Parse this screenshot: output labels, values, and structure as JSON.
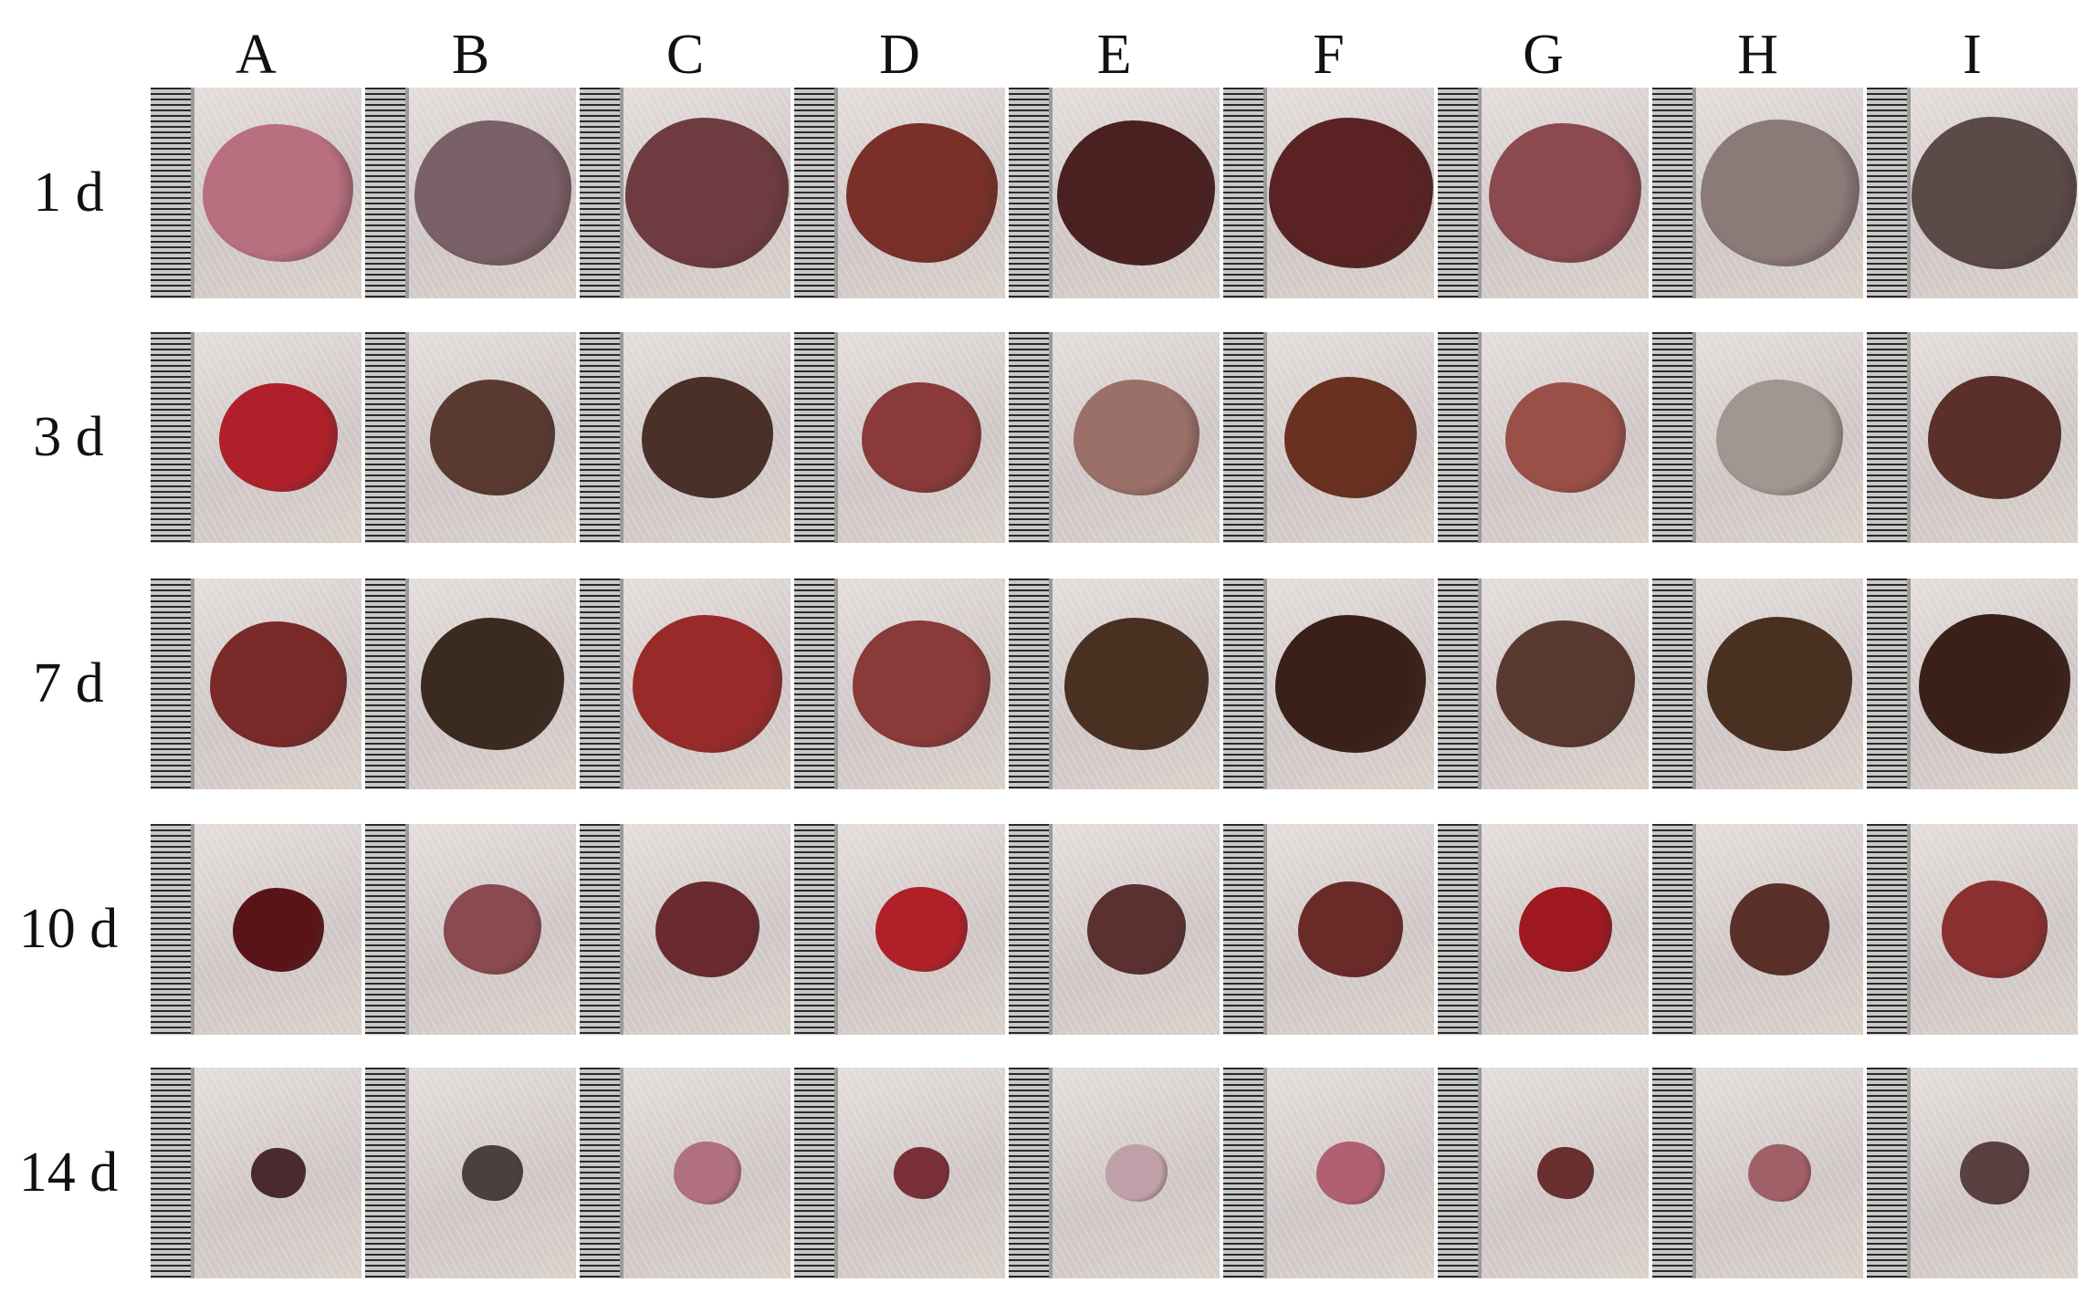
{
  "columns": [
    "A",
    "B",
    "C",
    "D",
    "E",
    "F",
    "G",
    "H",
    "I"
  ],
  "rows": [
    {
      "label": "1 d",
      "wound_colors": [
        "#b87080",
        "#7a6068",
        "#6e3c40",
        "#7a3028",
        "#4a2020",
        "#5a2222",
        "#8a4a50",
        "#8a7a78",
        "#5a4a48"
      ]
    },
    {
      "label": "3 d",
      "wound_colors": [
        "#b0202a",
        "#5a3a30",
        "#4a3028",
        "#8a3a3a",
        "#9a7068",
        "#6a3020",
        "#9a5048",
        "#a09890",
        "#5a3028"
      ]
    },
    {
      "label": "7 d",
      "wound_colors": [
        "#7a2a28",
        "#3a2a20",
        "#9a2a2a",
        "#8a3a38",
        "#4a3020",
        "#3a2018",
        "#5a3a30",
        "#4a3020",
        "#3a2018"
      ]
    },
    {
      "label": "10 d",
      "wound_colors": [
        "#5a1418",
        "#8a4a50",
        "#6a2a30",
        "#b02028",
        "#5a3030",
        "#6a2a28",
        "#a01820",
        "#5a3028",
        "#8a3030"
      ]
    },
    {
      "label": "14 d",
      "wound_colors": [
        "#4a2a30",
        "#4a4040",
        "#b07080",
        "#7a3038",
        "#c0a0a8",
        "#b06070",
        "#6a3030",
        "#a06068",
        "#5a4040"
      ]
    }
  ]
}
